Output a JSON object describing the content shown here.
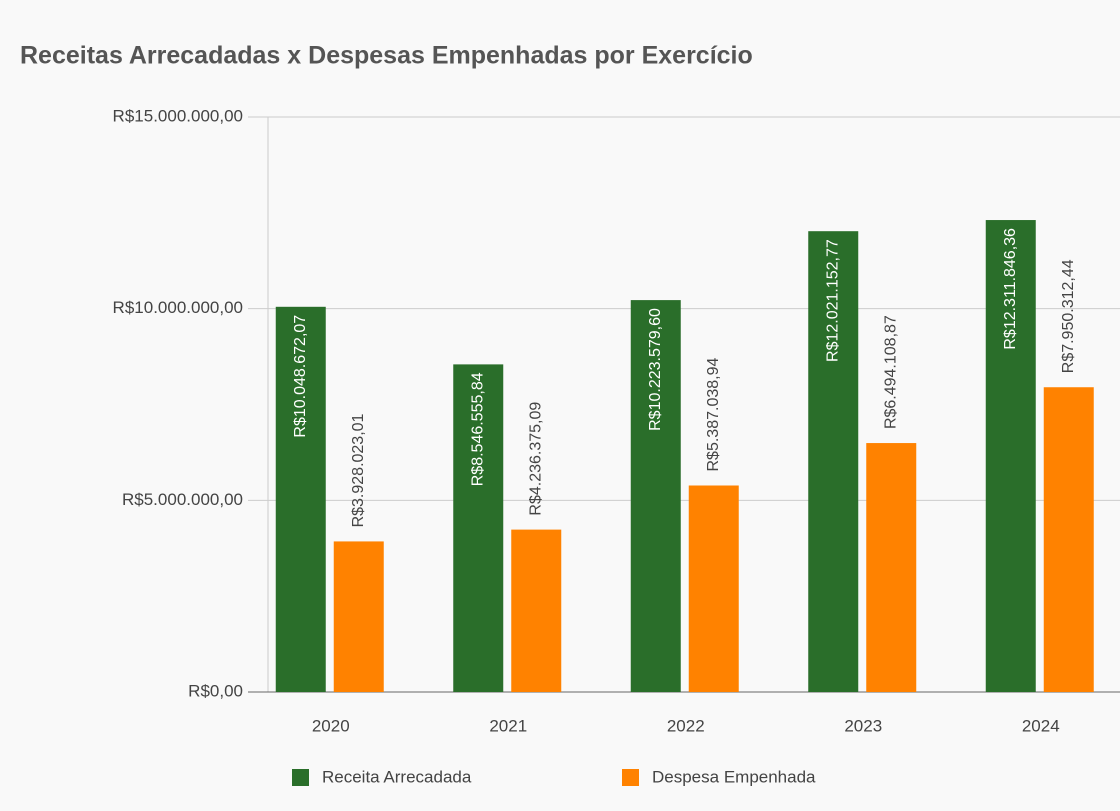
{
  "chart_data": {
    "type": "bar",
    "title": "Receitas Arrecadadas x Despesas Empenhadas por Exercício",
    "categories": [
      "2020",
      "2021",
      "2022",
      "2023",
      "2024"
    ],
    "series": [
      {
        "name": "Receita Arrecadada",
        "color": "#2a6e2a",
        "values": [
          10048672.07,
          8546555.84,
          10223579.6,
          12021152.77,
          12311846.36
        ],
        "value_labels": [
          "R$10.048.672,07",
          "R$8.546.555,84",
          "R$10.223.579,60",
          "R$12.021.152,77",
          "R$12.311.846,36"
        ]
      },
      {
        "name": "Despesa Empenhada",
        "color": "#ff8200",
        "values": [
          3928023.01,
          4236375.09,
          5387038.94,
          6494108.87,
          7950312.44
        ],
        "value_labels": [
          "R$3.928.023,01",
          "R$4.236.375,09",
          "R$5.387.038,94",
          "R$6.494.108,87",
          "R$7.950.312,44"
        ]
      }
    ],
    "ylim": [
      0,
      15000000
    ],
    "yticks": [
      {
        "value": 0,
        "label": "R$0,00"
      },
      {
        "value": 5000000,
        "label": "R$5.000.000,00"
      },
      {
        "value": 10000000,
        "label": "R$10.000.000,00"
      },
      {
        "value": 15000000,
        "label": "R$15.000.000,00"
      }
    ],
    "grid": true,
    "legend": "bottom"
  }
}
